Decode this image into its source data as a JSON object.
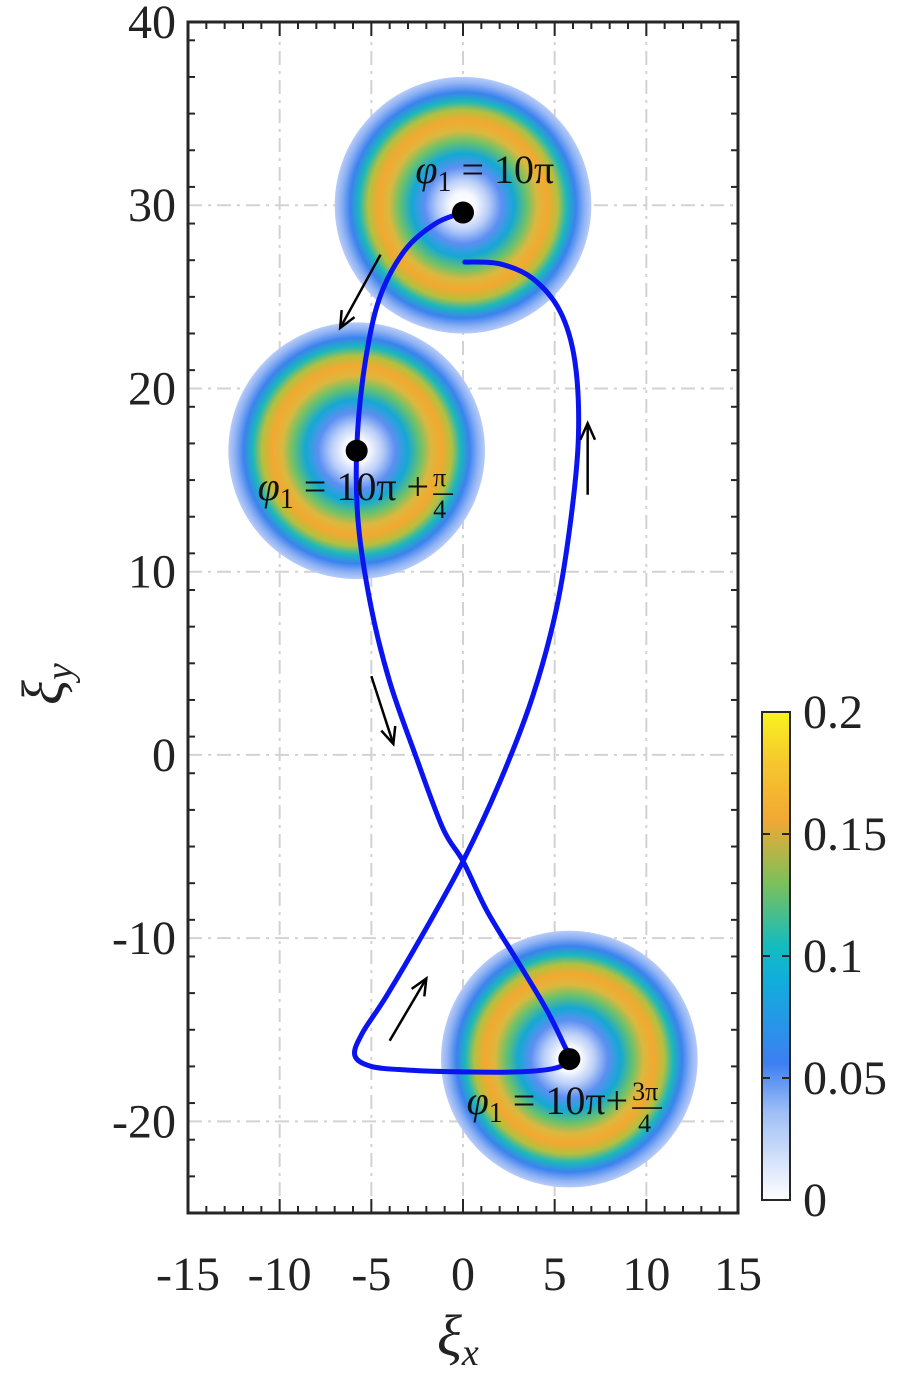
{
  "chart_data": {
    "type": "heatmap",
    "title": "",
    "xlabel": "ξ",
    "xlabel_sub": "x",
    "ylabel": "ξ",
    "ylabel_sub": "y",
    "xlim": [
      -15,
      15
    ],
    "ylim": [
      -25,
      40
    ],
    "xticks": [
      -15,
      -10,
      -5,
      0,
      5,
      10,
      15
    ],
    "yticks": [
      -20,
      -10,
      0,
      10,
      20,
      30,
      40
    ],
    "xtick_labels": [
      "-15",
      "-10",
      "-5",
      "0",
      "5",
      "10",
      "15"
    ],
    "ytick_labels": [
      "-20",
      "-10",
      "0",
      "10",
      "20",
      "30",
      "40"
    ],
    "grid": true,
    "colorbar": {
      "min": 0,
      "max": 0.2,
      "ticks": [
        0,
        0.05,
        0.1,
        0.15,
        0.2
      ],
      "tick_labels": [
        "0",
        "0.05",
        "0.1",
        "0.15",
        "0.2"
      ],
      "colormap": [
        "#ffffff",
        "#2f7df6",
        "#10b8c8",
        "#f6a830",
        "#f9f41f"
      ]
    },
    "rings": [
      {
        "cx": 0,
        "cy": 30,
        "radius": 7
      },
      {
        "cx": -5.8,
        "cy": 16.6,
        "radius": 7
      },
      {
        "cx": 5.8,
        "cy": -16.6,
        "radius": 7
      }
    ],
    "trajectory": {
      "color": "#0a14f0",
      "points": [
        [
          0,
          29.6
        ],
        [
          -1.5,
          29.0
        ],
        [
          -3.2,
          27.5
        ],
        [
          -4.6,
          24.8
        ],
        [
          -5.4,
          21.0
        ],
        [
          -5.8,
          16.6
        ],
        [
          -5.7,
          12.5
        ],
        [
          -5.0,
          8.0
        ],
        [
          -4.0,
          4.0
        ],
        [
          -2.6,
          0.0
        ],
        [
          -1.1,
          -4.0
        ],
        [
          0,
          -5.8
        ],
        [
          1.3,
          -8.5
        ],
        [
          3.0,
          -11.3
        ],
        [
          4.5,
          -13.8
        ],
        [
          5.5,
          -15.8
        ],
        [
          5.8,
          -16.6
        ],
        [
          5.0,
          -17.1
        ],
        [
          3.0,
          -17.3
        ],
        [
          0.0,
          -17.3
        ],
        [
          -3.0,
          -17.2
        ],
        [
          -5.0,
          -17.0
        ],
        [
          -5.9,
          -16.4
        ],
        [
          -5.5,
          -15.2
        ],
        [
          -4.2,
          -13.2
        ],
        [
          -2.2,
          -9.8
        ],
        [
          0.0,
          -5.8
        ],
        [
          2.0,
          -1.5
        ],
        [
          3.8,
          3.2
        ],
        [
          5.1,
          8.0
        ],
        [
          5.9,
          13.0
        ],
        [
          6.3,
          17.5
        ],
        [
          6.1,
          21.5
        ],
        [
          5.3,
          24.2
        ],
        [
          3.8,
          26.0
        ],
        [
          2.0,
          26.8
        ],
        [
          0.1,
          26.9
        ]
      ]
    },
    "markers": [
      {
        "x": 0,
        "y": 29.6
      },
      {
        "x": -5.8,
        "y": 16.6
      },
      {
        "x": 5.8,
        "y": -16.6
      }
    ],
    "arrows": [
      {
        "from": [
          -4.5,
          27.3
        ],
        "to": [
          -6.7,
          23.3
        ]
      },
      {
        "from": [
          6.8,
          14.2
        ],
        "to": [
          6.8,
          18.1
        ]
      },
      {
        "from": [
          -5.0,
          4.3
        ],
        "to": [
          -3.8,
          0.6
        ]
      },
      {
        "from": [
          -4.0,
          -15.6
        ],
        "to": [
          -2.0,
          -12.2
        ]
      }
    ],
    "annotations": [
      {
        "phi": "φ",
        "sub": "1",
        "eq": " = 10π",
        "frac_num": "",
        "frac_den": "",
        "x": -2.6,
        "y": 31.2
      },
      {
        "phi": "φ",
        "sub": "1",
        "eq": " = 10π + ",
        "frac_num": "π",
        "frac_den": "4",
        "x": -11.2,
        "y": 13.9
      },
      {
        "phi": "φ",
        "sub": "1",
        "eq": " = 10π+ ",
        "frac_num": "3π",
        "frac_den": "4",
        "x": 0.2,
        "y": -19.6
      }
    ]
  }
}
